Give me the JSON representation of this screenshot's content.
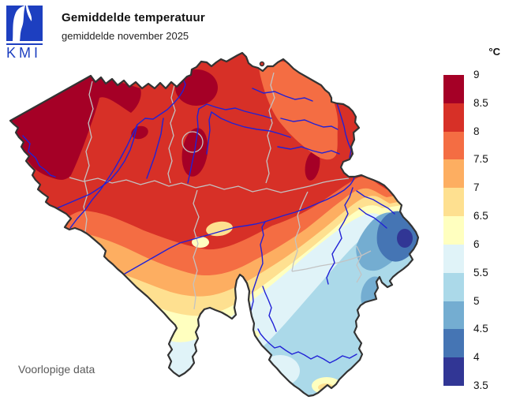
{
  "header": {
    "logo_text": "KMI",
    "logo_color": "#1d3fc0",
    "title": "Gemiddelde temperatuur",
    "subtitle": "gemiddelde november 2025"
  },
  "footnote": "Voorlopige data",
  "legend": {
    "unit": "°C",
    "labels": [
      "9",
      "8.5",
      "8",
      "7.5",
      "7",
      "6.5",
      "6",
      "5.5",
      "5",
      "4.5",
      "4",
      "3.5"
    ],
    "colors": [
      "#a50026",
      "#d73027",
      "#f46d43",
      "#fdae61",
      "#fee090",
      "#ffffbf",
      "#e0f3f8",
      "#abd9e9",
      "#74add1",
      "#4575b4",
      "#313695"
    ]
  },
  "map": {
    "border_color": "#333333",
    "province_border_color": "#c3c3c3",
    "river_color": "#2121d6"
  },
  "chart_data": {
    "type": "filled-contour temperature map (choropleth)",
    "title": "Gemiddelde temperatuur",
    "subtitle": "gemiddelde november 2025",
    "unit": "°C",
    "scale_ticks": [
      9,
      8.5,
      8,
      7.5,
      7,
      6.5,
      6,
      5.5,
      5,
      4.5,
      4,
      3.5
    ],
    "scale_colors": [
      "#a50026",
      "#d73027",
      "#f46d43",
      "#fdae61",
      "#fee090",
      "#ffffbf",
      "#e0f3f8",
      "#abd9e9",
      "#74add1",
      "#4575b4",
      "#313695"
    ],
    "legend_position": "right",
    "spatial_pattern": "Warmest (8.5-9 °C) along the west coast and in spots near Antwerp and Brussels; 8-8.5 °C over most of the north; cooling southeastward through 7-6 °C bands; coldest core (3.5-4 °C) in the far east (High Fens); slightly warmer pale-yellow pocket at the southern tip"
  }
}
